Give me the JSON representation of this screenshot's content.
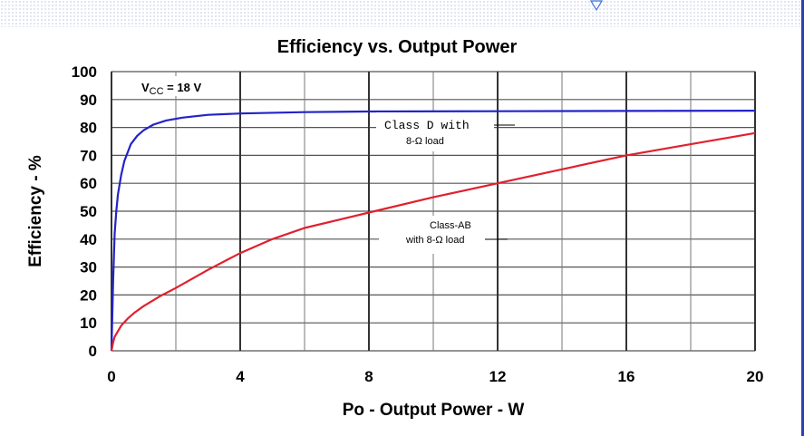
{
  "chart_data": {
    "type": "line",
    "title": "Efficiency vs. Output Power",
    "xlabel": "Po - Output Power - W",
    "ylabel": "Efficiency - %",
    "xlim": [
      0,
      20
    ],
    "ylim": [
      0,
      100
    ],
    "x_ticks": [
      "0",
      "4",
      "8",
      "12",
      "16",
      "20"
    ],
    "y_ticks": [
      "0",
      "10",
      "20",
      "30",
      "40",
      "50",
      "60",
      "70",
      "80",
      "90",
      "100"
    ],
    "grid": true,
    "series": [
      {
        "color": "#2323c8",
        "x": [
          0,
          0.05,
          0.1,
          0.15,
          0.2,
          0.3,
          0.4,
          0.6,
          0.8,
          1.0,
          1.3,
          1.7,
          2.2,
          3,
          4,
          6,
          8,
          12,
          16,
          20
        ],
        "y": [
          0,
          25,
          42,
          50,
          56,
          63,
          68,
          74,
          77,
          79,
          81,
          82.5,
          83.5,
          84.5,
          85,
          85.5,
          85.7,
          85.8,
          85.9,
          86
        ]
      },
      {
        "color": "#e0202e",
        "x": [
          0,
          0.05,
          0.1,
          0.2,
          0.3,
          0.5,
          0.7,
          1,
          1.5,
          2,
          3,
          4,
          5,
          6,
          8,
          10,
          12,
          14,
          16,
          18,
          20
        ],
        "y": [
          0,
          3,
          5,
          7,
          9,
          11.5,
          13.5,
          16,
          19.5,
          22.5,
          29,
          35,
          40,
          44,
          49.5,
          55,
          60,
          65,
          70,
          74,
          78
        ]
      }
    ],
    "annotations": {
      "vcc": {
        "prefix": "V",
        "sub": "CC",
        "suffix": " = 18 V"
      },
      "class_d_line1": "Class D with",
      "class_d_line2": "8-Ω load",
      "class_ab_line1": "Class-AB",
      "class_ab_line2": "with 8-Ω load"
    }
  }
}
